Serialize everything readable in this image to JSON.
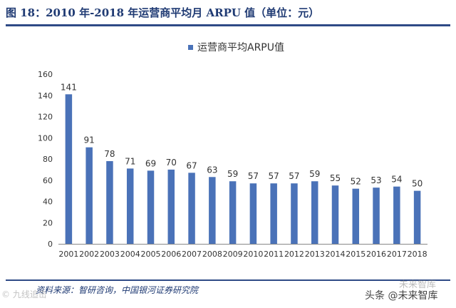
{
  "figure": {
    "title": "图 18：2010 年-2018 年运营商平均月 ARPU 值（单位：元）",
    "source": "资料来源：智研咨询，中国银河证券研究院",
    "watermark_left": "© 九线追击",
    "watermark_right": "头条 @未来智库",
    "watermark_right_top": "未来智库"
  },
  "colors": {
    "bar": "#4a72b8",
    "axis": "#888888",
    "text": "#333333"
  },
  "chart_data": {
    "type": "bar",
    "title": "",
    "legend": "运营商平均ARPU值",
    "legend_position": "top-center",
    "categories": [
      "2001",
      "2002",
      "2003",
      "2004",
      "2005",
      "2006",
      "2007",
      "2008",
      "2009",
      "2010",
      "2011",
      "2012",
      "2013",
      "2014",
      "2015",
      "2016",
      "2017",
      "2018"
    ],
    "series": [
      {
        "name": "运营商平均ARPU值",
        "values": [
          141,
          91,
          78,
          71,
          69,
          70,
          67,
          63,
          59,
          57,
          57,
          57,
          59,
          55,
          52,
          53,
          54,
          50
        ]
      }
    ],
    "ylim": [
      0,
      160
    ],
    "yticks": [
      0,
      20,
      40,
      60,
      80,
      100,
      120,
      140,
      160
    ],
    "xlabel": "",
    "ylabel": "",
    "grid": false
  }
}
